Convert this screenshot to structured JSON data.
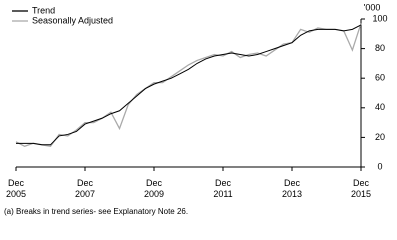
{
  "chart_data": {
    "type": "line",
    "unit_label": "'000",
    "footnote": "(a) Breaks in trend series- see Explanatory Note 26.",
    "x": [
      "2005-12",
      "2006-03",
      "2006-06",
      "2006-09",
      "2006-12",
      "2007-03",
      "2007-06",
      "2007-09",
      "2007-12",
      "2008-03",
      "2008-06",
      "2008-09",
      "2008-12",
      "2009-03",
      "2009-06",
      "2009-09",
      "2009-12",
      "2010-03",
      "2010-06",
      "2010-09",
      "2010-12",
      "2011-03",
      "2011-06",
      "2011-09",
      "2011-12",
      "2012-03",
      "2012-06",
      "2012-09",
      "2012-12",
      "2013-03",
      "2013-06",
      "2013-09",
      "2013-12",
      "2014-03",
      "2014-06",
      "2014-09",
      "2014-12",
      "2015-03",
      "2015-06",
      "2015-09",
      "2015-12"
    ],
    "series": [
      {
        "name": "Trend",
        "color": "#000000",
        "values": [
          16,
          16,
          16,
          15,
          15,
          21,
          22,
          24,
          29,
          31,
          33,
          36,
          38,
          43,
          48,
          53,
          56,
          58,
          60,
          63,
          66,
          70,
          73,
          75,
          76,
          77,
          76,
          75,
          76,
          78,
          80,
          82,
          84,
          89,
          92,
          93,
          93,
          93,
          92,
          93,
          96
        ]
      },
      {
        "name": "Seasonally Adjusted",
        "color": "#aaaaaa",
        "values": [
          17,
          14,
          16,
          15,
          14,
          22,
          21,
          25,
          30,
          30,
          33,
          37,
          26,
          42,
          49,
          53,
          57,
          57,
          61,
          65,
          69,
          72,
          74,
          76,
          75,
          78,
          74,
          76,
          77,
          75,
          79,
          83,
          84,
          93,
          91,
          94,
          93,
          93,
          92,
          79,
          97
        ]
      }
    ],
    "xlim": [
      "2005-12",
      "2015-12"
    ],
    "xticks": [
      {
        "value": "2005-12",
        "label": "Dec 2005"
      },
      {
        "value": "2007-12",
        "label": "Dec 2007"
      },
      {
        "value": "2009-12",
        "label": "Dec 2009"
      },
      {
        "value": "2011-12",
        "label": "Dec 2011"
      },
      {
        "value": "2013-12",
        "label": "Dec 2013"
      },
      {
        "value": "2015-12",
        "label": "Dec 2015"
      }
    ],
    "ylim": [
      0,
      100
    ],
    "yticks": [
      0,
      20,
      40,
      60,
      80,
      100
    ],
    "legend": "top-left"
  }
}
